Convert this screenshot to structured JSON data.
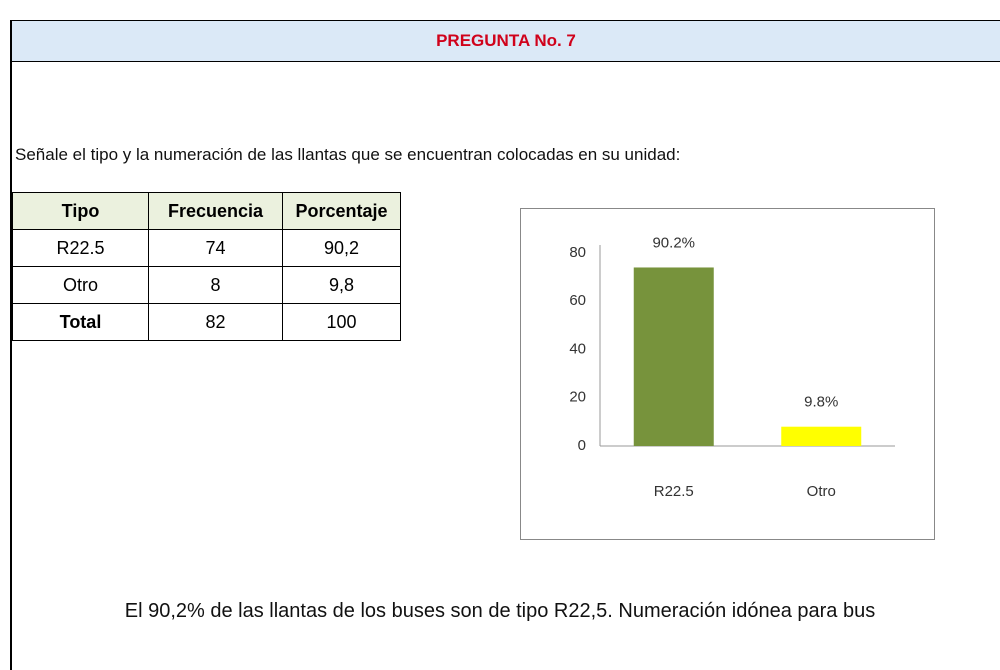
{
  "header": {
    "title": "PREGUNTA No. 7"
  },
  "question": "Señale el tipo y la numeración de las llantas que se encuentran colocadas en su unidad:",
  "table": {
    "header": [
      "Tipo",
      "Frecuencia",
      "Porcentaje"
    ],
    "rows": [
      [
        "R22.5",
        "74",
        "90,2"
      ],
      [
        "Otro",
        "8",
        "9,8"
      ],
      [
        "Total",
        "82",
        "100"
      ]
    ]
  },
  "chart_data": {
    "type": "bar",
    "categories": [
      "R22.5",
      "Otro"
    ],
    "values": [
      74,
      8
    ],
    "data_labels": [
      "90.2%",
      "9.8%"
    ],
    "colors": [
      "#77933c",
      "#ffff00"
    ],
    "ylim": [
      0,
      80
    ],
    "yticks": [
      0,
      20,
      40,
      60,
      80
    ]
  },
  "conclusion": "El 90,2% de las llantas de los buses son de tipo R22,5. Numeración idónea para bus"
}
